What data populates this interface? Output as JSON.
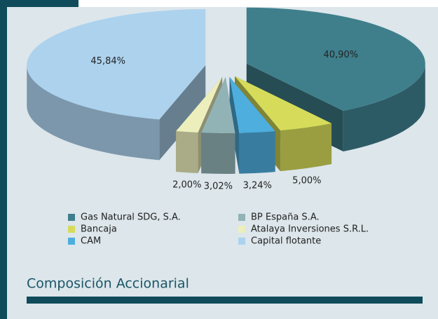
{
  "chart_data": {
    "type": "pie",
    "title": "Composición Accionarial",
    "categories": [
      "Gas Natural SDG, S.A.",
      "Bancaja",
      "CAM",
      "BP España  S.A.",
      "Atalaya Inversiones S.R.L.",
      "Capital flotante"
    ],
    "values": [
      40.9,
      5.0,
      3.24,
      3.02,
      2.0,
      45.84
    ],
    "value_labels": [
      "40,90%",
      "5,00%",
      "3,24%",
      "3,02%",
      "2,00%",
      "45,84%"
    ],
    "colors": [
      "#3f7f8c",
      "#d6dc5a",
      "#4eaede",
      "#92b3b6",
      "#ecefbc",
      "#acd2ee"
    ],
    "legend": "bottom"
  }
}
